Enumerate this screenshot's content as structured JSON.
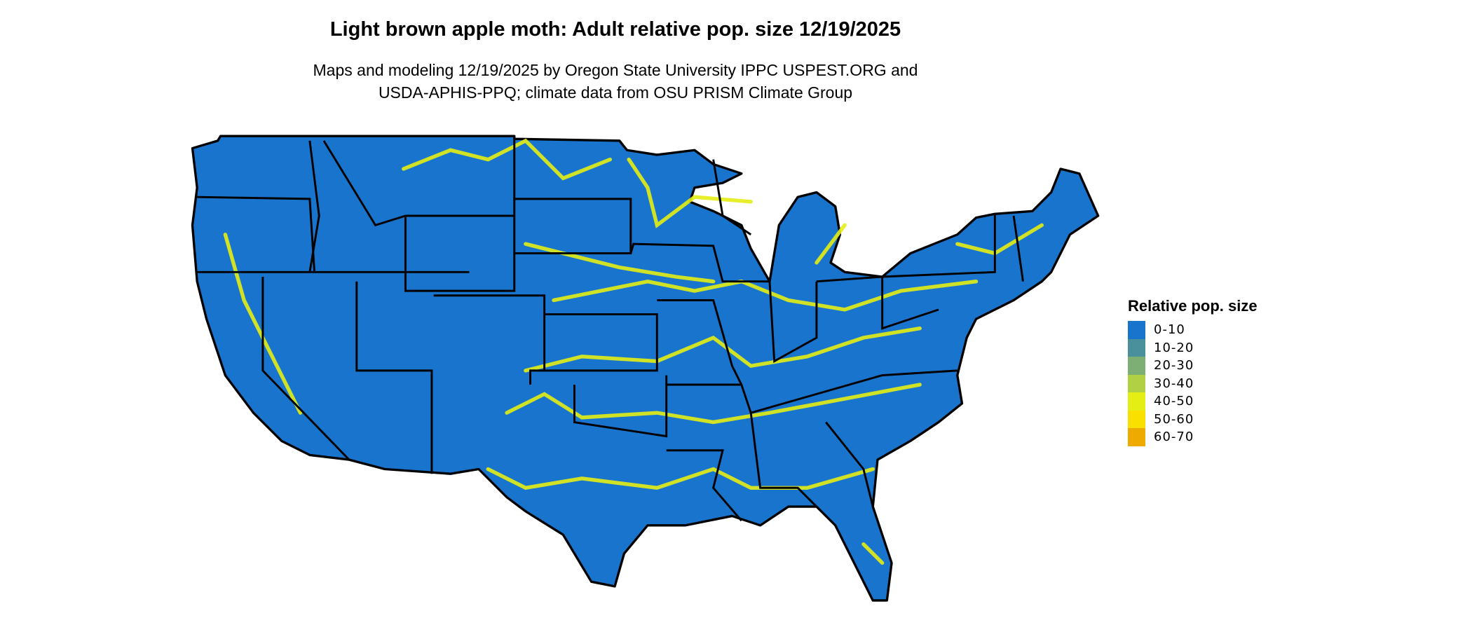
{
  "title": "Light brown apple moth: Adult relative pop. size 12/19/2025",
  "subtitle_line1": "Maps and modeling 12/19/2025 by Oregon State University IPPC USPEST.ORG and",
  "subtitle_line2": "USDA-APHIS-PPQ; climate data from OSU PRISM Climate Group",
  "map": {
    "region": "Contiguous United States",
    "base_color": "#1874CD",
    "border_color": "#000000",
    "highlight_color": "#E5EE14"
  },
  "legend": {
    "title": "Relative pop. size",
    "items": [
      {
        "label": "0-10",
        "color": "#1874CD"
      },
      {
        "label": "10-20",
        "color": "#4A8F9C"
      },
      {
        "label": "20-30",
        "color": "#7DAF75"
      },
      {
        "label": "30-40",
        "color": "#B2D043"
      },
      {
        "label": "40-50",
        "color": "#E5EE14"
      },
      {
        "label": "50-60",
        "color": "#F9E000"
      },
      {
        "label": "60-70",
        "color": "#EFAA00"
      }
    ]
  }
}
